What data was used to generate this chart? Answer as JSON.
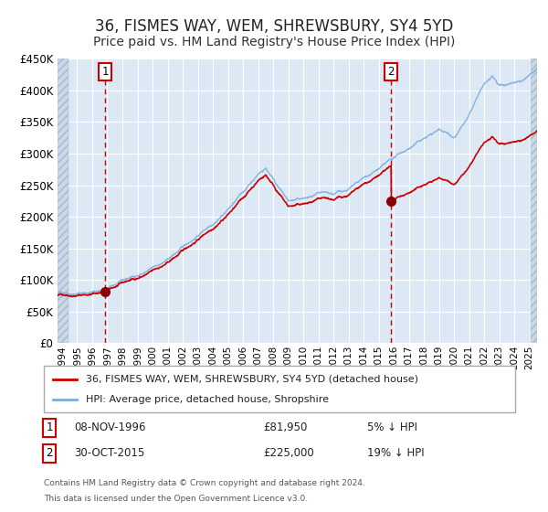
{
  "title": "36, FISMES WAY, WEM, SHREWSBURY, SY4 5YD",
  "subtitle": "Price paid vs. HM Land Registry's House Price Index (HPI)",
  "title_fontsize": 12,
  "subtitle_fontsize": 10,
  "background_color": "#dce9f5",
  "grid_color": "#ffffff",
  "red_line_color": "#cc0000",
  "blue_line_color": "#7aacdb",
  "marker_color": "#8b0000",
  "vline_color": "#cc0000",
  "annotation_box_color": "#cc0000",
  "ylim": [
    0,
    450000
  ],
  "yticks": [
    0,
    50000,
    100000,
    150000,
    200000,
    250000,
    300000,
    350000,
    400000,
    450000
  ],
  "purchase1": {
    "date_num": 1996.86,
    "price": 81950,
    "label": "1",
    "date_str": "08-NOV-1996",
    "price_str": "£81,950",
    "hpi_str": "5% ↓ HPI"
  },
  "purchase2": {
    "date_num": 2015.83,
    "price": 225000,
    "label": "2",
    "date_str": "30-OCT-2015",
    "price_str": "£225,000",
    "hpi_str": "19% ↓ HPI"
  },
  "legend_line1": "36, FISMES WAY, WEM, SHREWSBURY, SY4 5YD (detached house)",
  "legend_line2": "HPI: Average price, detached house, Shropshire",
  "footer1": "Contains HM Land Registry data © Crown copyright and database right 2024.",
  "footer2": "This data is licensed under the Open Government Licence v3.0.",
  "xmin": 1993.7,
  "xmax": 2025.5,
  "hatch_left_end": 1994.42,
  "hatch_right_start": 2025.08
}
